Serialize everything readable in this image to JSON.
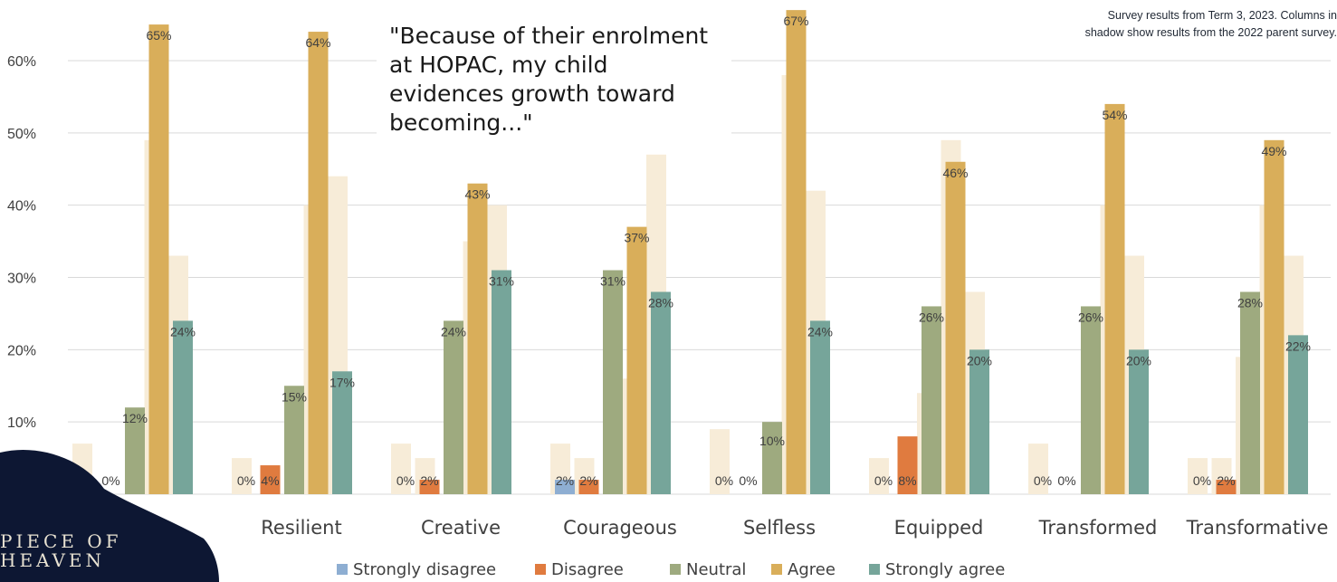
{
  "annotation": {
    "line1": "Survey results from Term 3, 2023. Columns in",
    "line2": "shadow show results from the 2022 parent survey."
  },
  "quote": "\"Because of  their enrolment at HOPAC, my child evidences growth toward becoming...\"",
  "logo": {
    "line1": "PIECE OF",
    "line2": "HEAVEN",
    "bg_color": "#0d1733"
  },
  "colors": {
    "strongly_disagree": "#8eaed2",
    "disagree": "#e07b3f",
    "neutral": "#9eaa7f",
    "agree": "#d9ae5a",
    "strongly_agree": "#76a59a",
    "shadow": "#f7ecd8",
    "grid": "#d9d9d9",
    "text": "#404040"
  },
  "chart_data": {
    "type": "bar",
    "ylim": [
      0,
      0.7
    ],
    "yticks": [
      "10%",
      "20%",
      "30%",
      "40%",
      "50%",
      "60%"
    ],
    "categories": [
      "",
      "Resilient",
      "Creative",
      "Courageous",
      "Selfless",
      "Equipped",
      "Transformed",
      "Transformative"
    ],
    "series": [
      {
        "name": "Strongly disagree",
        "values": [
          0,
          0,
          0,
          0.02,
          0,
          0,
          0,
          0
        ],
        "labels": [
          "0%",
          "0%",
          "0%",
          "2%",
          "0%",
          "0%",
          "0%",
          "0%"
        ]
      },
      {
        "name": "Disagree",
        "values": [
          0,
          0.04,
          0.02,
          0.02,
          0,
          0.08,
          0,
          0.02
        ],
        "labels": [
          "0%",
          "4%",
          "2%",
          "2%",
          "0%",
          "8%",
          "0%",
          "2%"
        ]
      },
      {
        "name": "Neutral",
        "values": [
          0.12,
          0.15,
          0.24,
          0.31,
          0.1,
          0.26,
          0.26,
          0.28
        ],
        "labels": [
          "12%",
          "15%",
          "24%",
          "31%",
          "10%",
          "26%",
          "26%",
          "28%"
        ]
      },
      {
        "name": "Agree",
        "values": [
          0.65,
          0.64,
          0.43,
          0.37,
          0.67,
          0.46,
          0.54,
          0.49
        ],
        "labels": [
          "65%",
          "64%",
          "43%",
          "37%",
          "67%",
          "46%",
          "54%",
          "49%"
        ]
      },
      {
        "name": "Strongly agree",
        "values": [
          0.24,
          0.17,
          0.31,
          0.28,
          0.24,
          0.2,
          0.2,
          0.22
        ],
        "labels": [
          "24%",
          "17%",
          "31%",
          "28%",
          "24%",
          "20%",
          "20%",
          "22%"
        ]
      }
    ],
    "shadow_2022": [
      [
        0.07,
        0.0,
        0.0,
        0.49,
        0.33
      ],
      [
        0.05,
        0.0,
        0.0,
        0.4,
        0.44
      ],
      [
        0.07,
        0.05,
        0.0,
        0.35,
        0.4
      ],
      [
        0.07,
        0.05,
        0.0,
        0.16,
        0.47
      ],
      [
        0.09,
        0.0,
        0.0,
        0.58,
        0.42
      ],
      [
        0.05,
        0.0,
        0.14,
        0.49,
        0.28
      ],
      [
        0.07,
        0.0,
        0.0,
        0.4,
        0.33
      ],
      [
        0.05,
        0.05,
        0.19,
        0.4,
        0.33
      ]
    ],
    "legend_position": "bottom",
    "grid": true
  }
}
